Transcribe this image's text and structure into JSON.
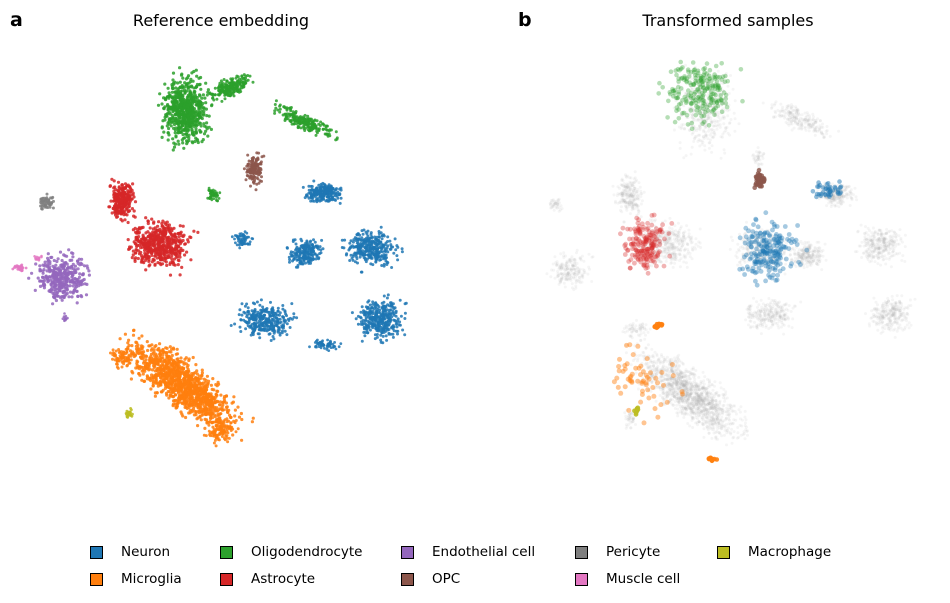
{
  "panels": [
    {
      "letter": "a",
      "title": "Reference embedding"
    },
    {
      "letter": "b",
      "title": "Transformed samples"
    }
  ],
  "chart_data": [
    {
      "type": "scatter",
      "title": "Reference embedding",
      "xlabel": "",
      "ylabel": "",
      "axes_visible": false,
      "grid": false,
      "legend_position": "bottom",
      "series": [
        {
          "name": "Neuron",
          "color": "#1f77b4"
        },
        {
          "name": "Microglia",
          "color": "#ff7f0e"
        },
        {
          "name": "Oligodendrocyte",
          "color": "#2ca02c"
        },
        {
          "name": "Astrocyte",
          "color": "#d62728"
        },
        {
          "name": "Endothelial cell",
          "color": "#9467bd"
        },
        {
          "name": "OPC",
          "color": "#8c564b"
        },
        {
          "name": "Pericyte",
          "color": "#7f7f7f"
        },
        {
          "name": "Muscle cell",
          "color": "#e377c2"
        },
        {
          "name": "Macrophage",
          "color": "#bcbd22"
        }
      ]
    },
    {
      "type": "scatter",
      "title": "Transformed samples",
      "xlabel": "",
      "ylabel": "",
      "axes_visible": false,
      "grid": false,
      "background_color": "#b0b0b0",
      "series": [
        {
          "name": "Neuron",
          "color": "#1f77b4"
        },
        {
          "name": "Microglia",
          "color": "#ff7f0e"
        },
        {
          "name": "Oligodendrocyte",
          "color": "#2ca02c"
        },
        {
          "name": "Astrocyte",
          "color": "#d62728"
        },
        {
          "name": "OPC",
          "color": "#8c564b"
        },
        {
          "name": "Macrophage",
          "color": "#bcbd22"
        }
      ]
    }
  ],
  "legend": [
    {
      "label": "Neuron",
      "color": "#1f77b4"
    },
    {
      "label": "Microglia",
      "color": "#ff7f0e"
    },
    {
      "label": "Oligodendrocyte",
      "color": "#2ca02c"
    },
    {
      "label": "Astrocyte",
      "color": "#d62728"
    },
    {
      "label": "Endothelial cell",
      "color": "#9467bd"
    },
    {
      "label": "OPC",
      "color": "#8c564b"
    },
    {
      "label": "Pericyte",
      "color": "#7f7f7f"
    },
    {
      "label": "Muscle cell",
      "color": "#e377c2"
    },
    {
      "label": "Macrophage",
      "color": "#bcbd22"
    }
  ]
}
